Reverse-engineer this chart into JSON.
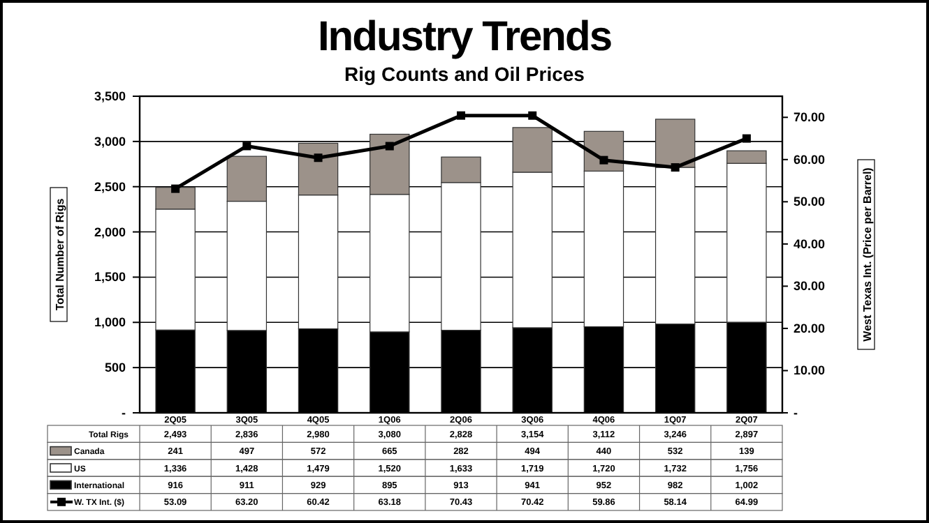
{
  "chart_data": {
    "type": "bar",
    "title": "Industry Trends",
    "subtitle": "Rig Counts and Oil Prices",
    "ylabel": "Total Number of Rigs",
    "y2label": "West Texas Int. (Price per Barrel)",
    "annotations": [
      "Total Rigs"
    ],
    "categories": [
      "2Q05",
      "3Q05",
      "4Q05",
      "1Q06",
      "2Q06",
      "3Q06",
      "4Q06",
      "1Q07",
      "2Q07"
    ],
    "stacked": true,
    "grid": "y",
    "legend": "bottom",
    "marker": "square",
    "ylim": [
      0,
      3500
    ],
    "yticks": [
      {
        "value": 0,
        "label": "-"
      },
      {
        "value": 500,
        "label": "500"
      },
      {
        "value": 1000,
        "label": "1,000"
      },
      {
        "value": 1500,
        "label": "1,500"
      },
      {
        "value": 2000,
        "label": "2,000"
      },
      {
        "value": 2500,
        "label": "2,500"
      },
      {
        "value": 3000,
        "label": "3,000"
      },
      {
        "value": 3500,
        "label": "3,500"
      }
    ],
    "y2lim": [
      0,
      75
    ],
    "y2ticks": [
      {
        "value": 0,
        "label": "-"
      },
      {
        "value": 10,
        "label": "10.00"
      },
      {
        "value": 20,
        "label": "20.00"
      },
      {
        "value": 30,
        "label": "30.00"
      },
      {
        "value": 40,
        "label": "40.00"
      },
      {
        "value": 50,
        "label": "50.00"
      },
      {
        "value": 60,
        "label": "60.00"
      },
      {
        "value": 70,
        "label": "70.00"
      }
    ],
    "totals": [
      "2,493",
      "2,836",
      "2,980",
      "3,080",
      "2,828",
      "3,154",
      "3,112",
      "3,246",
      "2,897"
    ],
    "series": [
      {
        "name": "International",
        "color": "#000000",
        "values": [
          916,
          911,
          929,
          895,
          913,
          941,
          952,
          982,
          1002
        ],
        "value_labels": [
          "916",
          "911",
          "929",
          "895",
          "913",
          "941",
          "952",
          "982",
          "1,002"
        ]
      },
      {
        "name": "US",
        "color": "#ffffff",
        "values": [
          1336,
          1428,
          1479,
          1520,
          1633,
          1719,
          1720,
          1732,
          1756
        ],
        "value_labels": [
          "1,336",
          "1,428",
          "1,479",
          "1,520",
          "1,633",
          "1,719",
          "1,720",
          "1,732",
          "1,756"
        ]
      },
      {
        "name": "Canada",
        "color": "#9c928a",
        "values": [
          241,
          497,
          572,
          665,
          282,
          494,
          440,
          532,
          139
        ],
        "value_labels": [
          "241",
          "497",
          "572",
          "665",
          "282",
          "494",
          "440",
          "532",
          "139"
        ]
      },
      {
        "name": "W. TX Int. ($)",
        "type": "line",
        "axis": "y2",
        "color": "#000000",
        "values": [
          53.09,
          63.2,
          60.42,
          63.18,
          70.43,
          70.42,
          59.86,
          58.14,
          64.99
        ],
        "value_labels": [
          "53.09",
          "63.20",
          "60.42",
          "63.18",
          "70.43",
          "70.42",
          "59.86",
          "58.14",
          "64.99"
        ]
      }
    ]
  }
}
